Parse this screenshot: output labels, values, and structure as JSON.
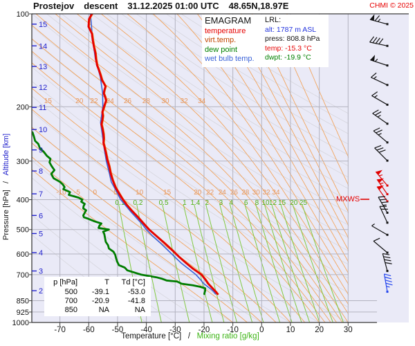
{
  "header": {
    "station": "Prostejov",
    "mode": "descent",
    "datetime": "31.12.2025 01:00 UTC",
    "coords": "48.65N,18.97E",
    "copyright": "CHMI © 2025"
  },
  "legend": {
    "title": "EMAGRAM",
    "items": [
      {
        "label": "temperature",
        "color": "#e60000"
      },
      {
        "label": "virt.temp.",
        "color": "#c04400"
      },
      {
        "label": "dew point",
        "color": "#008000"
      },
      {
        "label": "wet bulb temp.",
        "color": "#3a62d8"
      }
    ]
  },
  "lrl": {
    "title": "LRL:",
    "lines": [
      {
        "label": "alt:",
        "value": "1787 m ASL",
        "color": "#2233dd"
      },
      {
        "label": "press:",
        "value": "808.8 hPa",
        "color": "#111111"
      },
      {
        "label": "temp:",
        "value": "-15.3 °C",
        "color": "#e60000"
      },
      {
        "label": "dwpt:",
        "value": "-19.9 °C",
        "color": "#008000"
      }
    ]
  },
  "table": {
    "header": [
      "p [hPa]",
      "T",
      "Td [°C]"
    ],
    "rows": [
      [
        "500",
        "-39.1",
        "-53.0"
      ],
      [
        "700",
        "-20.9",
        "-41.8"
      ],
      [
        "850",
        "NA",
        "NA"
      ]
    ]
  },
  "mxws": {
    "label": "MXWS"
  },
  "axes": {
    "bottom_black": "Temperature [°C]",
    "separator": "/",
    "bottom_green": "Mixing ratio [g/kg]",
    "left_black": "Pressure [hPa]",
    "left_blue": "Altitude [km]"
  },
  "chart_data": {
    "type": "line",
    "title": "EMAGRAM sounding, Prostejov descent 31.12.2025 01:00 UTC",
    "xlabel": "Temperature [°C] / Mixing ratio [g/kg]",
    "ylabel": "Pressure [hPa] / Altitude [km]",
    "x_range_temp_c": [
      -79.7,
      30.2
    ],
    "p_range_hpa": [
      100,
      1000
    ],
    "temp_ticks": [
      -70,
      -60,
      -50,
      -40,
      -30,
      -20,
      -10,
      0,
      10,
      20,
      30
    ],
    "pressure_ticks": [
      100,
      200,
      300,
      400,
      500,
      600,
      700,
      850,
      925,
      1000
    ],
    "altitude_ticks": [
      {
        "km": 15,
        "p": 108
      },
      {
        "km": 14,
        "p": 127
      },
      {
        "km": 13,
        "p": 148
      },
      {
        "km": 12,
        "p": 173
      },
      {
        "km": 11,
        "p": 201
      },
      {
        "km": 10,
        "p": 237
      },
      {
        "km": 9,
        "p": 276
      },
      {
        "km": 8,
        "p": 323
      },
      {
        "km": 7,
        "p": 383
      },
      {
        "km": 6,
        "p": 450
      },
      {
        "km": 5,
        "p": 515
      },
      {
        "km": 4,
        "p": 594
      },
      {
        "km": 3,
        "p": 681
      },
      {
        "km": 2,
        "p": 789
      }
    ],
    "dry_adiabats_theta_c": [
      -40,
      -30,
      -20,
      -10,
      0,
      10,
      20,
      30,
      40,
      50,
      60,
      70,
      80,
      90,
      100,
      110,
      120,
      130,
      140,
      150,
      160,
      170,
      180,
      190,
      200
    ],
    "moist_adiabats_thetaw_c": {
      "labeled": [
        -10,
        -5,
        0,
        5,
        10,
        15,
        20,
        22,
        24,
        26,
        28,
        30,
        32,
        34
      ],
      "unlabeled": [
        36,
        38,
        40,
        42,
        44,
        46,
        48,
        50,
        54,
        58
      ],
      "label_row_mid_p": 383,
      "label_row_upper_p": 192,
      "upper_row_min": 15
    },
    "mixing_ratio_g_kg": [
      0.1,
      0.2,
      0.5,
      1,
      1.4,
      2,
      3,
      4,
      6,
      8,
      10,
      12,
      15,
      20,
      25
    ],
    "mixing_label_p": 412,
    "mixing_top_p": 405,
    "colors": {
      "plot_bg": "#eaeaf7",
      "grid": "#b3b3bf",
      "border": "#3a3a3a",
      "dry_adiabat": "#d6d6dd",
      "moist_adiabat": "#f2a45c",
      "moist_label": "#e8965a",
      "mixing_line": "#80c93e",
      "mixing_label": "#4fb012",
      "temperature": "#e60000",
      "dewpoint": "#007d00",
      "wetbulb": "#3a62d8",
      "virtual": "#f07000",
      "altitude_axis": "#2020cc",
      "barb_black": "#101010",
      "barb_red": "#e00000",
      "barb_blue": "#2244ee"
    },
    "profiles": {
      "temperature_p_t": [
        [
          100,
          -58.9
        ],
        [
          104,
          -59.9
        ],
        [
          110,
          -60.1
        ],
        [
          116,
          -58.9
        ],
        [
          122,
          -58.6
        ],
        [
          128,
          -58.2
        ],
        [
          134,
          -57.7
        ],
        [
          140,
          -57.5
        ],
        [
          147,
          -57.1
        ],
        [
          152,
          -56.5
        ],
        [
          158,
          -55.9
        ],
        [
          164,
          -55.4
        ],
        [
          169,
          -54.6
        ],
        [
          172,
          -54.2
        ],
        [
          177,
          -54.6
        ],
        [
          181,
          -54.8
        ],
        [
          186,
          -54.3
        ],
        [
          191,
          -54.0
        ],
        [
          196,
          -54.4
        ],
        [
          203,
          -54.9
        ],
        [
          208,
          -55.3
        ],
        [
          214,
          -55.1
        ],
        [
          221,
          -55.3
        ],
        [
          228,
          -55.6
        ],
        [
          236,
          -55.2
        ],
        [
          245,
          -54.9
        ],
        [
          253,
          -54.8
        ],
        [
          262,
          -54.9
        ],
        [
          271,
          -54.5
        ],
        [
          281,
          -54.1
        ],
        [
          296,
          -53.6
        ],
        [
          312,
          -52.9
        ],
        [
          329,
          -52.4
        ],
        [
          346,
          -51.7
        ],
        [
          365,
          -50.7
        ],
        [
          380,
          -49.6
        ],
        [
          398,
          -48.3
        ],
        [
          415,
          -46.9
        ],
        [
          433,
          -45.2
        ],
        [
          456,
          -42.9
        ],
        [
          480,
          -40.8
        ],
        [
          500,
          -39.1
        ],
        [
          523,
          -36.7
        ],
        [
          551,
          -33.9
        ],
        [
          580,
          -31.3
        ],
        [
          610,
          -28.9
        ],
        [
          642,
          -26.2
        ],
        [
          670,
          -23.8
        ],
        [
          700,
          -20.9
        ],
        [
          725,
          -19.6
        ],
        [
          748,
          -18.6
        ],
        [
          774,
          -17.1
        ],
        [
          794,
          -16.0
        ],
        [
          808.8,
          -15.3
        ]
      ],
      "dewpoint_p_t": [
        [
          242,
          -79.5
        ],
        [
          250,
          -79.0
        ],
        [
          258,
          -78.6
        ],
        [
          264,
          -77.5
        ],
        [
          272,
          -77.0
        ],
        [
          280,
          -75.6
        ],
        [
          288,
          -74.6
        ],
        [
          295,
          -73.3
        ],
        [
          303,
          -73.6
        ],
        [
          311,
          -72.9
        ],
        [
          321,
          -71.9
        ],
        [
          330,
          -73.0
        ],
        [
          341,
          -72.2
        ],
        [
          350,
          -70.0
        ],
        [
          357,
          -69.0
        ],
        [
          364,
          -68.4
        ],
        [
          370,
          -68.8
        ],
        [
          378,
          -66.5
        ],
        [
          386,
          -66.9
        ],
        [
          394,
          -63.5
        ],
        [
          400,
          -62.2
        ],
        [
          406,
          -62.6
        ],
        [
          413,
          -61.4
        ],
        [
          420,
          -61.8
        ],
        [
          427,
          -61.9
        ],
        [
          433,
          -60.9
        ],
        [
          441,
          -61.4
        ],
        [
          450,
          -61.9
        ],
        [
          456,
          -61.7
        ],
        [
          462,
          -60.0
        ],
        [
          470,
          -58.0
        ],
        [
          478,
          -55.6
        ],
        [
          486,
          -56.3
        ],
        [
          494,
          -56.6
        ],
        [
          500,
          -53.0
        ],
        [
          508,
          -55.0
        ],
        [
          517,
          -54.6
        ],
        [
          535,
          -54.3
        ],
        [
          548,
          -54.1
        ],
        [
          562,
          -53.3
        ],
        [
          576,
          -53.0
        ],
        [
          590,
          -51.4
        ],
        [
          604,
          -50.8
        ],
        [
          620,
          -50.5
        ],
        [
          636,
          -50.1
        ],
        [
          652,
          -49.5
        ],
        [
          664,
          -47.5
        ],
        [
          678,
          -46.6
        ],
        [
          690,
          -44.0
        ],
        [
          700,
          -41.8
        ],
        [
          706,
          -39.4
        ],
        [
          714,
          -36.5
        ],
        [
          722,
          -34.5
        ],
        [
          731,
          -33.0
        ],
        [
          737,
          -29.3
        ],
        [
          749,
          -27.8
        ],
        [
          758,
          -23.9
        ],
        [
          766,
          -21.4
        ],
        [
          775,
          -19.6
        ],
        [
          790,
          -19.6
        ],
        [
          800,
          -19.8
        ],
        [
          808.8,
          -19.9
        ]
      ],
      "wetbulb_p_t": [
        [
          100,
          -59.4
        ],
        [
          120,
          -58.7
        ],
        [
          140,
          -57.7
        ],
        [
          160,
          -56.0
        ],
        [
          180,
          -55.2
        ],
        [
          200,
          -55.1
        ],
        [
          225,
          -55.9
        ],
        [
          250,
          -55.2
        ],
        [
          275,
          -54.6
        ],
        [
          300,
          -53.9
        ],
        [
          330,
          -52.8
        ],
        [
          350,
          -52.2
        ],
        [
          380,
          -50.1
        ],
        [
          400,
          -48.9
        ],
        [
          420,
          -47.0
        ],
        [
          440,
          -45.2
        ],
        [
          460,
          -43.3
        ],
        [
          480,
          -41.5
        ],
        [
          500,
          -40.0
        ],
        [
          523,
          -38.0
        ],
        [
          551,
          -35.3
        ],
        [
          580,
          -32.8
        ],
        [
          610,
          -30.4
        ],
        [
          642,
          -27.9
        ],
        [
          670,
          -25.4
        ],
        [
          700,
          -22.8
        ],
        [
          725,
          -21.3
        ],
        [
          748,
          -20.1
        ],
        [
          766,
          -18.7
        ],
        [
          780,
          -17.6
        ],
        [
          794,
          -16.7
        ],
        [
          808.8,
          -16.0
        ]
      ],
      "virtual_temp_offset_c": 0.3
    },
    "wind_barbs": [
      {
        "p": 108,
        "spd": 65,
        "dir": 285,
        "color": "black"
      },
      {
        "p": 127,
        "spd": 40,
        "dir": 282,
        "color": "black"
      },
      {
        "p": 147,
        "spd": 55,
        "dir": 288,
        "color": "black"
      },
      {
        "p": 170,
        "spd": 15,
        "dir": 295,
        "color": "black"
      },
      {
        "p": 197,
        "spd": 15,
        "dir": 300,
        "color": "black"
      },
      {
        "p": 227,
        "spd": 25,
        "dir": 305,
        "color": "black"
      },
      {
        "p": 261,
        "spd": 25,
        "dir": 310,
        "color": "black"
      },
      {
        "p": 299,
        "spd": 30,
        "dir": 315,
        "color": "black"
      },
      {
        "p": 360,
        "spd": 55,
        "dir": 320,
        "color": "red"
      },
      {
        "p": 384,
        "spd": 55,
        "dir": 325,
        "color": "red"
      },
      {
        "p": 405,
        "spd": 50,
        "dir": 325,
        "color": "red"
      },
      {
        "p": 441,
        "spd": 35,
        "dir": 330,
        "color": "black"
      },
      {
        "p": 475,
        "spd": 20,
        "dir": 335,
        "color": "black"
      },
      {
        "p": 520,
        "spd": 5,
        "dir": 300,
        "color": "black"
      },
      {
        "p": 594,
        "spd": 10,
        "dir": 310,
        "color": "black"
      },
      {
        "p": 681,
        "spd": 40,
        "dir": 345,
        "color": "black"
      },
      {
        "p": 795,
        "spd": 45,
        "dir": 350,
        "color": "blue"
      }
    ],
    "mxws_line_y_p": 400,
    "legend_position": "top-right",
    "grid": true
  }
}
